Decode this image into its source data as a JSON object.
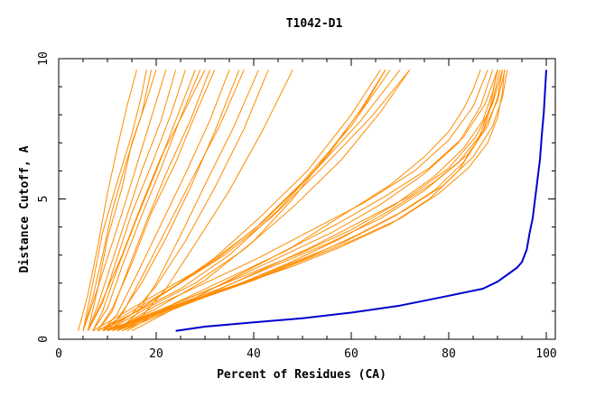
{
  "chart_data": {
    "type": "line",
    "title": "T1042-D1",
    "xlabel": "Percent of Residues (CA)",
    "ylabel": "Distance Cutoff, A",
    "xlim": [
      0,
      100
    ],
    "ylim": [
      0,
      10
    ],
    "xticks": [
      {
        "value": 0,
        "label": "0"
      },
      {
        "value": 20,
        "label": "20"
      },
      {
        "value": 40,
        "label": "40"
      },
      {
        "value": 60,
        "label": "60"
      },
      {
        "value": 80,
        "label": "80"
      },
      {
        "value": 100,
        "label": "100"
      }
    ],
    "yticks": [
      {
        "value": 0,
        "label": "0"
      },
      {
        "value": 5,
        "label": "5"
      },
      {
        "value": 10,
        "label": "10"
      }
    ],
    "grid": false,
    "legend": "none",
    "colors": {
      "models": "#ff8c00",
      "highlight": "#0000cd"
    },
    "series": [
      {
        "color": "#0000cd",
        "highlight": true,
        "x": [
          24,
          30,
          40,
          50,
          60,
          70,
          80,
          87,
          90,
          92,
          94,
          95,
          96,
          96.6,
          97.2,
          97.7,
          98.2,
          98.7,
          99.1,
          99.5,
          99.8,
          100
        ],
        "y": [
          0.3,
          0.45,
          0.6,
          0.75,
          0.95,
          1.2,
          1.55,
          1.8,
          2.05,
          2.3,
          2.55,
          2.75,
          3.2,
          3.8,
          4.3,
          5.0,
          5.7,
          6.4,
          7.3,
          8.1,
          9.0,
          9.6
        ]
      },
      {
        "color": "#ff8c00",
        "x": [
          4,
          6,
          8,
          10,
          12,
          14,
          16
        ],
        "y": [
          0.3,
          1.6,
          3.3,
          5.2,
          6.8,
          8.3,
          9.6
        ]
      },
      {
        "color": "#ff8c00",
        "x": [
          5,
          7,
          9,
          11,
          14,
          17,
          19
        ],
        "y": [
          0.3,
          1.5,
          3.0,
          4.6,
          6.4,
          8.0,
          9.6
        ]
      },
      {
        "color": "#ff8c00",
        "x": [
          5,
          7,
          10,
          13,
          16,
          19,
          22
        ],
        "y": [
          0.3,
          1.3,
          2.9,
          4.5,
          6.2,
          7.9,
          9.6
        ]
      },
      {
        "color": "#ff8c00",
        "x": [
          6,
          8,
          11,
          14,
          17,
          21,
          24
        ],
        "y": [
          0.3,
          1.2,
          2.8,
          4.4,
          6.0,
          7.8,
          9.6
        ]
      },
      {
        "color": "#ff8c00",
        "x": [
          6,
          9,
          12,
          15,
          19,
          23,
          26
        ],
        "y": [
          0.3,
          1.3,
          2.9,
          4.5,
          6.2,
          8.0,
          9.6
        ]
      },
      {
        "color": "#ff8c00",
        "x": [
          7,
          9,
          12,
          16,
          20,
          24,
          28
        ],
        "y": [
          0.3,
          1.0,
          2.5,
          4.3,
          6.0,
          7.8,
          9.6
        ]
      },
      {
        "color": "#ff8c00",
        "x": [
          7,
          10,
          13,
          17,
          21,
          25,
          29
        ],
        "y": [
          0.3,
          1.1,
          2.6,
          4.4,
          6.1,
          7.9,
          9.6
        ]
      },
      {
        "color": "#ff8c00",
        "x": [
          8,
          11,
          14,
          18,
          22,
          27,
          31
        ],
        "y": [
          0.3,
          1.0,
          2.4,
          4.2,
          5.9,
          7.8,
          9.6
        ]
      },
      {
        "color": "#ff8c00",
        "x": [
          8,
          11,
          15,
          19,
          24,
          28,
          32
        ],
        "y": [
          0.3,
          1.1,
          2.7,
          4.5,
          6.3,
          8.0,
          9.6
        ]
      },
      {
        "color": "#ff8c00",
        "x": [
          9,
          12,
          16,
          21,
          26,
          31,
          35
        ],
        "y": [
          0.3,
          0.9,
          2.3,
          4.1,
          5.9,
          7.8,
          9.6
        ]
      },
      {
        "color": "#ff8c00",
        "x": [
          6,
          8,
          10,
          13,
          15,
          18,
          20
        ],
        "y": [
          0.3,
          1.8,
          3.6,
          5.4,
          7.0,
          8.5,
          9.6
        ]
      },
      {
        "color": "#ff8c00",
        "x": [
          5,
          7,
          9,
          12,
          15,
          17,
          18
        ],
        "y": [
          0.3,
          2.0,
          3.8,
          5.6,
          7.3,
          8.7,
          9.6
        ]
      },
      {
        "color": "#ff8c00",
        "x": [
          6,
          9,
          13,
          17,
          21,
          26,
          30
        ],
        "y": [
          0.3,
          1.4,
          3.0,
          4.8,
          6.5,
          8.2,
          9.6
        ]
      },
      {
        "color": "#ff8c00",
        "x": [
          10,
          13,
          17,
          22,
          27,
          33,
          38
        ],
        "y": [
          0.3,
          0.9,
          2.2,
          3.9,
          5.6,
          7.6,
          9.6
        ]
      },
      {
        "color": "#ff8c00",
        "x": [
          9,
          12,
          17,
          22,
          27,
          32,
          37
        ],
        "y": [
          0.3,
          0.7,
          2.0,
          3.6,
          5.4,
          7.4,
          9.6
        ]
      },
      {
        "color": "#ff8c00",
        "x": [
          12,
          16,
          20,
          25,
          30,
          36,
          41
        ],
        "y": [
          0.3,
          0.9,
          2.0,
          3.7,
          5.5,
          7.6,
          9.6
        ]
      },
      {
        "color": "#ff8c00",
        "x": [
          12,
          17,
          22,
          28,
          35,
          42,
          48
        ],
        "y": [
          0.3,
          0.8,
          1.8,
          3.4,
          5.3,
          7.5,
          9.6
        ]
      },
      {
        "color": "#ff8c00",
        "x": [
          10,
          15,
          20,
          26,
          32,
          38,
          43
        ],
        "y": [
          0.3,
          0.9,
          1.9,
          3.5,
          5.4,
          7.5,
          9.6
        ]
      },
      {
        "color": "#ff8c00",
        "x": [
          7,
          12,
          20,
          30,
          40,
          50,
          60,
          68
        ],
        "y": [
          0.3,
          0.8,
          1.6,
          2.6,
          3.9,
          5.6,
          7.6,
          9.6
        ]
      },
      {
        "color": "#ff8c00",
        "x": [
          8,
          14,
          22,
          32,
          42,
          52,
          62,
          70
        ],
        "y": [
          0.3,
          0.9,
          1.7,
          2.8,
          4.2,
          5.9,
          7.8,
          9.6
        ]
      },
      {
        "color": "#ff8c00",
        "x": [
          9,
          16,
          24,
          34,
          44,
          54,
          64,
          72
        ],
        "y": [
          0.3,
          1.0,
          1.9,
          3.0,
          4.4,
          6.1,
          7.9,
          9.6
        ]
      },
      {
        "color": "#ff8c00",
        "x": [
          10,
          18,
          28,
          38,
          48,
          58,
          66,
          72
        ],
        "y": [
          0.3,
          1.1,
          2.0,
          3.2,
          4.7,
          6.4,
          8.1,
          9.6
        ]
      },
      {
        "color": "#ff8c00",
        "x": [
          8,
          15,
          25,
          35,
          45,
          55,
          62,
          67
        ],
        "y": [
          0.3,
          0.9,
          1.8,
          3.0,
          4.6,
          6.5,
          8.2,
          9.6
        ]
      },
      {
        "color": "#ff8c00",
        "x": [
          11,
          20,
          30,
          40,
          48,
          56,
          63,
          67
        ],
        "y": [
          0.3,
          1.1,
          2.1,
          3.5,
          5.0,
          6.8,
          8.4,
          9.6
        ]
      },
      {
        "color": "#ff8c00",
        "x": [
          9,
          15,
          23,
          32,
          41,
          51,
          60,
          66
        ],
        "y": [
          0.3,
          0.9,
          1.8,
          2.9,
          4.3,
          6.0,
          8.0,
          9.6
        ]
      },
      {
        "color": "#ff8c00",
        "x": [
          10,
          20,
          30,
          40,
          50,
          60,
          70,
          78,
          84,
          88,
          90,
          91,
          91.4
        ],
        "y": [
          0.3,
          0.9,
          1.5,
          2.1,
          2.8,
          3.5,
          4.3,
          5.2,
          6.1,
          7.0,
          7.9,
          8.8,
          9.6
        ]
      },
      {
        "color": "#ff8c00",
        "x": [
          11,
          21,
          31,
          41,
          51,
          61,
          71,
          79,
          85,
          89,
          91,
          92
        ],
        "y": [
          0.3,
          1.0,
          1.6,
          2.2,
          2.9,
          3.7,
          4.6,
          5.5,
          6.5,
          7.6,
          8.6,
          9.6
        ]
      },
      {
        "color": "#ff8c00",
        "x": [
          12,
          22,
          33,
          44,
          55,
          66,
          75,
          82,
          87,
          90,
          91.5
        ],
        "y": [
          0.3,
          1.1,
          1.8,
          2.6,
          3.4,
          4.3,
          5.3,
          6.3,
          7.4,
          8.5,
          9.6
        ]
      },
      {
        "color": "#ff8c00",
        "x": [
          9,
          18,
          28,
          38,
          48,
          58,
          68,
          76,
          82,
          86,
          88.5,
          90
        ],
        "y": [
          0.3,
          0.8,
          1.4,
          2.0,
          2.6,
          3.3,
          4.1,
          5.0,
          6.0,
          7.1,
          8.3,
          9.6
        ]
      },
      {
        "color": "#ff8c00",
        "x": [
          10,
          19,
          29,
          39,
          49,
          59,
          69,
          77,
          83,
          87,
          89,
          90.5
        ],
        "y": [
          0.3,
          0.9,
          1.5,
          2.1,
          2.8,
          3.5,
          4.4,
          5.3,
          6.3,
          7.4,
          8.5,
          9.6
        ]
      },
      {
        "color": "#ff8c00",
        "x": [
          13,
          23,
          34,
          45,
          56,
          66,
          75,
          82,
          86.5,
          89
        ],
        "y": [
          0.3,
          1.2,
          2.0,
          2.9,
          3.8,
          4.8,
          5.9,
          7.0,
          8.3,
          9.6
        ]
      },
      {
        "color": "#ff8c00",
        "x": [
          11,
          20,
          30,
          41,
          52,
          63,
          73,
          80,
          85,
          88
        ],
        "y": [
          0.3,
          1.2,
          2.0,
          2.9,
          3.9,
          4.9,
          6.0,
          7.1,
          8.3,
          9.6
        ]
      },
      {
        "color": "#ff8c00",
        "x": [
          14,
          24,
          35,
          46,
          57,
          67,
          76,
          83,
          87.5,
          90
        ],
        "y": [
          0.3,
          1.3,
          2.2,
          3.1,
          4.1,
          5.1,
          6.1,
          7.2,
          8.4,
          9.6
        ]
      },
      {
        "color": "#ff8c00",
        "x": [
          12,
          22,
          32,
          42,
          52,
          62,
          72,
          80,
          85.5,
          89,
          91
        ],
        "y": [
          0.3,
          1.0,
          1.7,
          2.5,
          3.3,
          4.2,
          5.1,
          6.1,
          7.2,
          8.4,
          9.6
        ]
      },
      {
        "color": "#ff8c00",
        "x": [
          10,
          20,
          30,
          40,
          50,
          60,
          69,
          77,
          83,
          87,
          89,
          90
        ],
        "y": [
          0.3,
          1.0,
          1.7,
          2.4,
          3.1,
          3.9,
          4.8,
          5.8,
          6.8,
          7.8,
          8.8,
          9.6
        ]
      },
      {
        "color": "#ff8c00",
        "x": [
          15,
          26,
          37,
          48,
          58,
          68,
          75,
          80,
          83,
          85,
          86.5
        ],
        "y": [
          0.3,
          1.3,
          2.3,
          3.3,
          4.4,
          5.5,
          6.5,
          7.4,
          8.2,
          8.9,
          9.6
        ]
      },
      {
        "color": "#ff8c00",
        "x": [
          13,
          24,
          36,
          47,
          58,
          68,
          77,
          84,
          88,
          90,
          91
        ],
        "y": [
          0.3,
          1.1,
          1.9,
          2.7,
          3.6,
          4.6,
          5.6,
          6.6,
          7.6,
          8.6,
          9.6
        ]
      }
    ]
  }
}
